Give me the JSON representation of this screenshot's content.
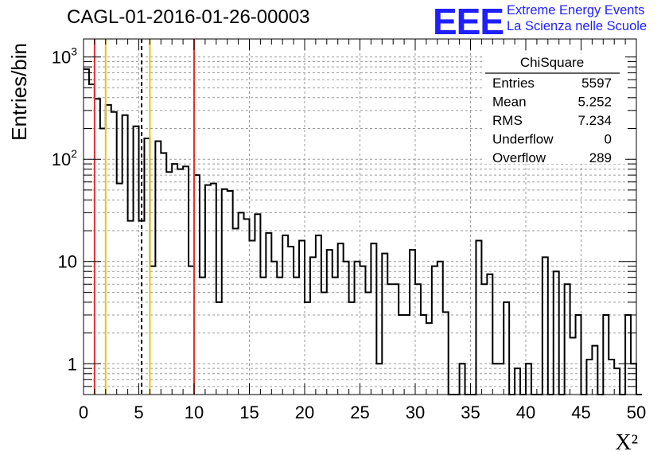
{
  "chart_data": {
    "type": "bar",
    "title": "CAGL-01-2016-01-26-00003",
    "xlabel": "X²",
    "ylabel": "Entries/bin",
    "xlim": [
      0,
      50
    ],
    "ylim": [
      0.5,
      1500
    ],
    "yscale": "log",
    "grid": true,
    "bin_width": 0.5,
    "x_ticks": [
      "0",
      "5",
      "10",
      "15",
      "20",
      "25",
      "30",
      "35",
      "40",
      "45",
      "50"
    ],
    "y_ticks": [
      {
        "value": 1,
        "label": "1"
      },
      {
        "value": 10,
        "label": "10"
      },
      {
        "value": 100,
        "label": "10²"
      },
      {
        "value": 1000,
        "label": "10³"
      }
    ],
    "values": [
      760,
      540,
      390,
      200,
      340,
      290,
      58,
      270,
      25,
      210,
      25,
      160,
      9,
      150,
      115,
      75,
      90,
      80,
      85,
      9,
      70,
      7,
      56,
      58,
      4,
      51,
      49,
      21,
      30,
      26,
      16,
      29,
      7,
      19,
      10,
      7,
      18,
      14,
      7,
      16,
      4,
      11,
      18,
      5,
      13,
      7,
      15,
      10,
      4,
      10,
      9,
      5,
      15,
      1,
      12,
      6,
      6,
      3,
      3,
      13,
      6,
      3,
      2.5,
      9,
      10,
      3.2,
      0,
      0,
      1,
      0,
      0,
      16,
      6,
      7.5,
      1,
      1,
      4,
      0,
      0.9,
      0,
      1,
      0,
      0,
      11,
      0,
      8,
      0,
      6,
      1.8,
      3,
      0,
      1.1,
      1.5,
      0,
      3,
      1.1,
      0.9,
      0,
      3,
      1,
      0
    ],
    "vertical_lines": [
      {
        "x": 1,
        "color": "#e03232",
        "style": "solid"
      },
      {
        "x": 2,
        "color": "#f0c010",
        "style": "solid"
      },
      {
        "x": 5.252,
        "color": "#000000",
        "style": "dashed"
      },
      {
        "x": 6,
        "color": "#f0c010",
        "style": "solid"
      },
      {
        "x": 10,
        "color": "#e03232",
        "style": "solid"
      }
    ],
    "stats_box": {
      "title": "ChiSquare",
      "rows": [
        {
          "label": "Entries",
          "value": "5597"
        },
        {
          "label": "Mean",
          "value": "5.252"
        },
        {
          "label": "RMS",
          "value": "7.234"
        },
        {
          "label": "Underflow",
          "value": "0"
        },
        {
          "label": "Overflow",
          "value": "289"
        }
      ]
    },
    "logo": {
      "mark": "EEE",
      "line1": "Extreme Energy Events",
      "line2": "La Scienza nelle Scuole",
      "color": "#1f1fff"
    }
  }
}
